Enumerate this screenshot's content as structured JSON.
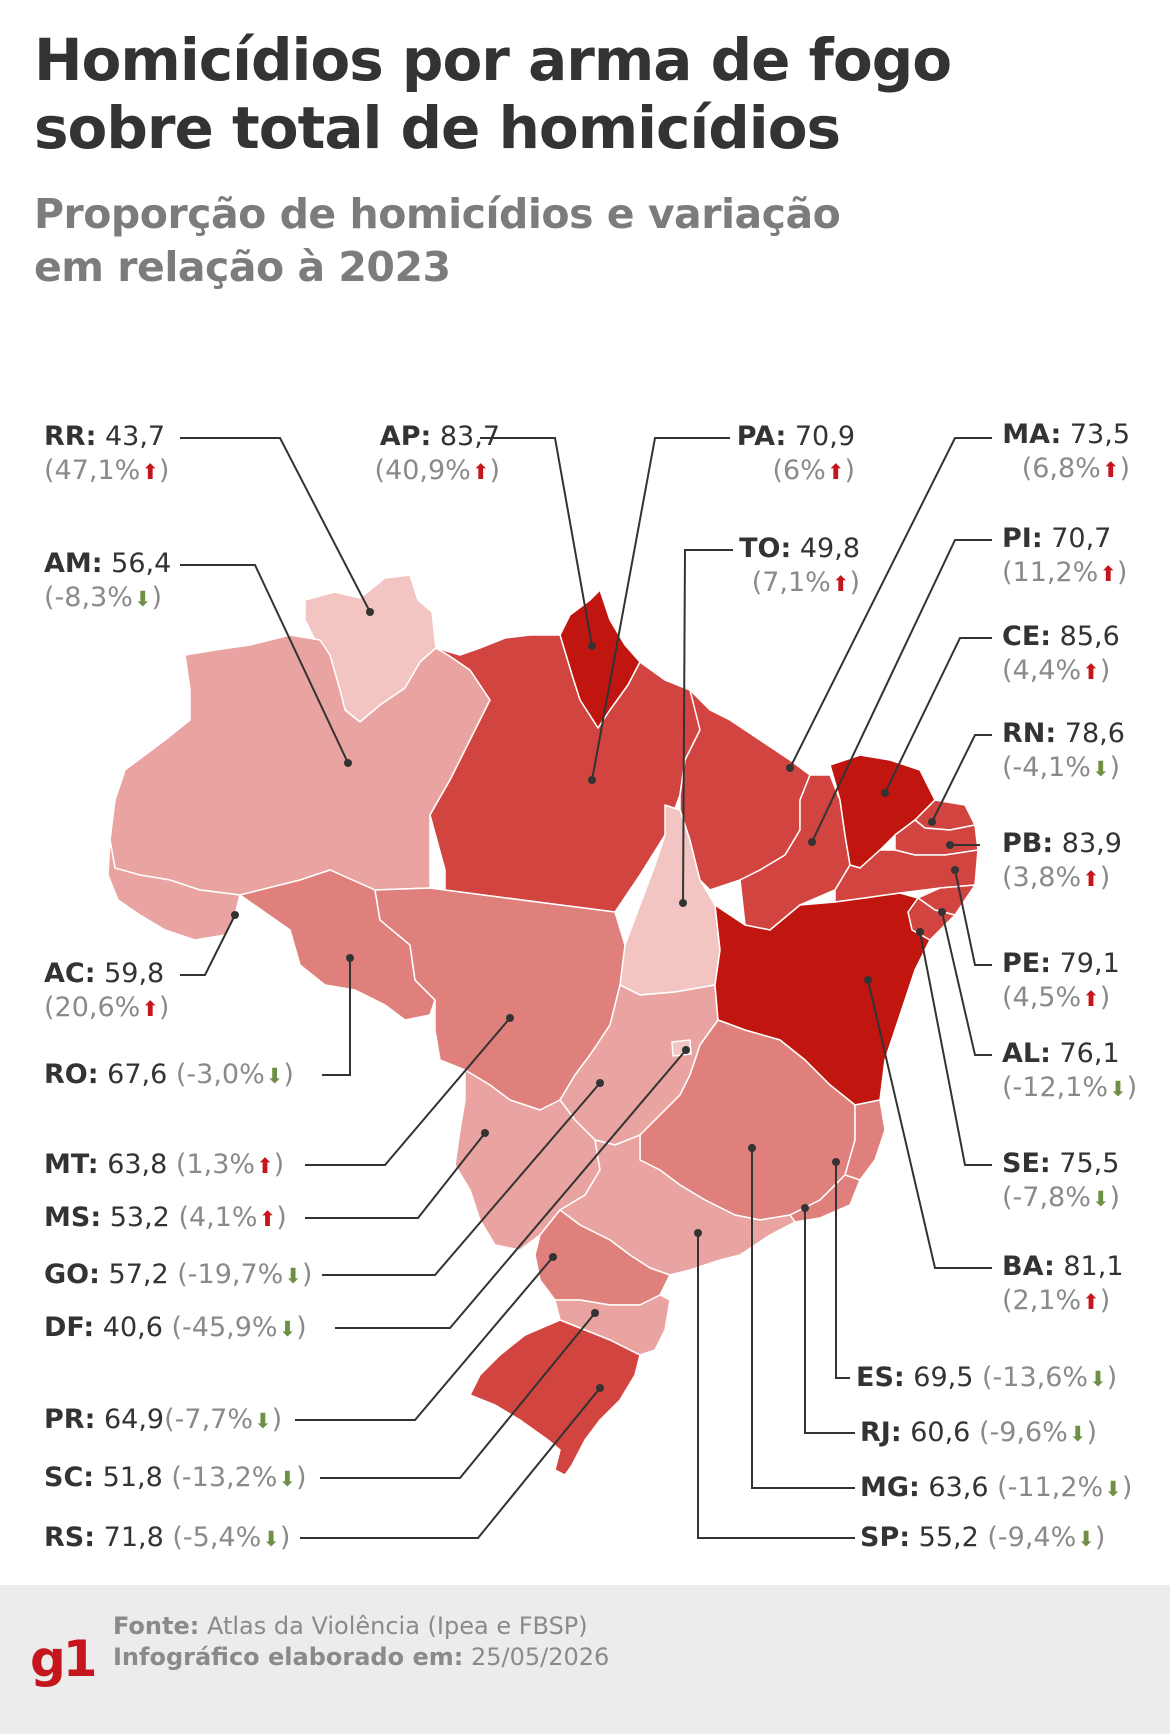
{
  "header": {
    "title_line1": "Homicídios por arma de fogo",
    "title_line2": "sobre total de homicídios",
    "subtitle_line1": "Proporção de homicídios e variação",
    "subtitle_line2": "em relação à 2023"
  },
  "legend_colors": {
    "very_high": "#c0160f",
    "high": "#d1443f",
    "medium": "#e0807c",
    "low": "#e9a3a0",
    "very_low": "#f2c5c3"
  },
  "states": [
    {
      "code": "RR:",
      "value": "43,7",
      "variation": "(47,1%",
      "direction": "up",
      "close": ")"
    },
    {
      "code": "AP:",
      "value": "83,7",
      "variation": "(40,9%",
      "direction": "up",
      "close": ")"
    },
    {
      "code": "PA:",
      "value": "70,9",
      "variation": "(6%",
      "direction": "up",
      "close": ")"
    },
    {
      "code": "MA:",
      "value": "73,5",
      "variation": "(6,8%",
      "direction": "up",
      "close": ")"
    },
    {
      "code": "AM:",
      "value": "56,4",
      "variation": "(-8,3%",
      "direction": "down",
      "close": ")"
    },
    {
      "code": "TO:",
      "value": "49,8",
      "variation": "(7,1%",
      "direction": "up",
      "close": ")"
    },
    {
      "code": "PI:",
      "value": "70,7",
      "variation": "(11,2%",
      "direction": "up",
      "close": ")"
    },
    {
      "code": "CE:",
      "value": "85,6",
      "variation": "(4,4%",
      "direction": "up",
      "close": ")"
    },
    {
      "code": "RN:",
      "value": "78,6",
      "variation": "(-4,1%",
      "direction": "down",
      "close": ")"
    },
    {
      "code": "PB:",
      "value": "83,9",
      "variation": "(3,8%",
      "direction": "up",
      "close": ")"
    },
    {
      "code": "AC:",
      "value": "59,8",
      "variation": "(20,6%",
      "direction": "up",
      "close": ")"
    },
    {
      "code": "PE:",
      "value": "79,1",
      "variation": "(4,5%",
      "direction": "up",
      "close": ")"
    },
    {
      "code": "RO:",
      "value": "67,6",
      "variation": "(-3,0%",
      "direction": "down",
      "close": ")"
    },
    {
      "code": "AL:",
      "value": "76,1",
      "variation": "(-12,1%",
      "direction": "down",
      "close": ")"
    },
    {
      "code": "MT:",
      "value": "63,8",
      "variation": "(1,3%",
      "direction": "up",
      "close": ")"
    },
    {
      "code": "SE:",
      "value": "75,5",
      "variation": "(-7,8%",
      "direction": "down",
      "close": ")"
    },
    {
      "code": "MS:",
      "value": "53,2",
      "variation": "(4,1%",
      "direction": "up",
      "close": ")"
    },
    {
      "code": "GO:",
      "value": "57,2",
      "variation": "(-19,7%",
      "direction": "down",
      "close": ")"
    },
    {
      "code": "BA:",
      "value": "81,1",
      "variation": "(2,1%",
      "direction": "up",
      "close": ")"
    },
    {
      "code": "DF:",
      "value": "40,6",
      "variation": "(-45,9%",
      "direction": "down",
      "close": ")"
    },
    {
      "code": "ES:",
      "value": "69,5",
      "variation": "(-13,6%",
      "direction": "down",
      "close": ")"
    },
    {
      "code": "PR:",
      "value": "64,9",
      "variation": "(-7,7%",
      "direction": "down",
      "close": ")"
    },
    {
      "code": "RJ:",
      "value": "60,6",
      "variation": "(-9,6%",
      "direction": "down",
      "close": ")"
    },
    {
      "code": "SC:",
      "value": "51,8",
      "variation": "(-13,2%",
      "direction": "down",
      "close": ")"
    },
    {
      "code": "MG:",
      "value": "63,6",
      "variation": "(-11,2%",
      "direction": "down",
      "close": ")"
    },
    {
      "code": "RS:",
      "value": "71,8",
      "variation": "(-5,4%",
      "direction": "down",
      "close": ")"
    },
    {
      "code": "SP:",
      "value": "55,2",
      "variation": "(-9,4%",
      "direction": "down",
      "close": ")"
    }
  ],
  "footer": {
    "logo": "g1",
    "source_label": "Fonte:",
    "source_value": "Atlas da Violência (Ipea e FBSP)",
    "date_label": "Infográfico elaborado em:",
    "date_value": "25/05/2026"
  }
}
